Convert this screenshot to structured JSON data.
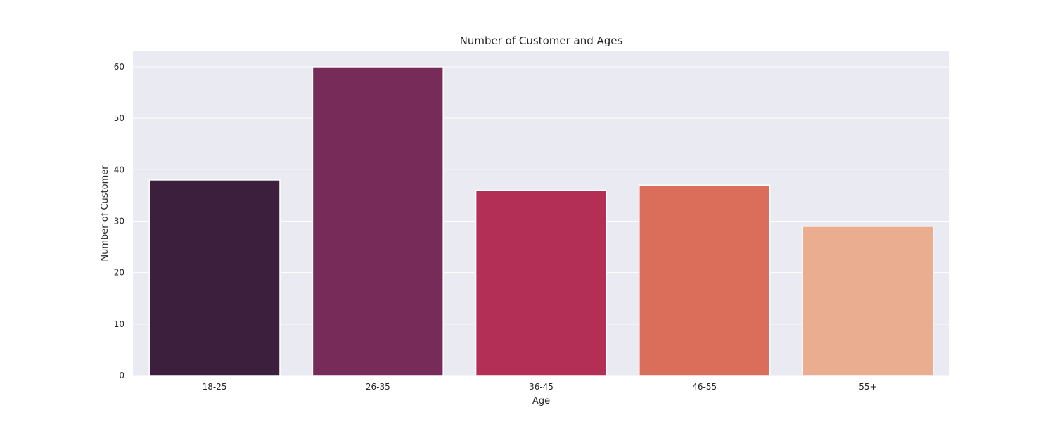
{
  "chart_data": {
    "type": "bar",
    "title": "Number of Customer and Ages",
    "xlabel": "Age",
    "ylabel": "Number of Customer",
    "categories": [
      "18-25",
      "26-35",
      "36-45",
      "46-55",
      "55+"
    ],
    "values": [
      38,
      60,
      36,
      37,
      29
    ],
    "ylim": [
      0,
      63
    ],
    "yticks": [
      0,
      10,
      20,
      30,
      40,
      50,
      60
    ],
    "grid": true,
    "colors": [
      "#3b1f3d",
      "#772b58",
      "#b32f55",
      "#db6e5a",
      "#eaad90"
    ],
    "background": "#eaeaf2"
  }
}
